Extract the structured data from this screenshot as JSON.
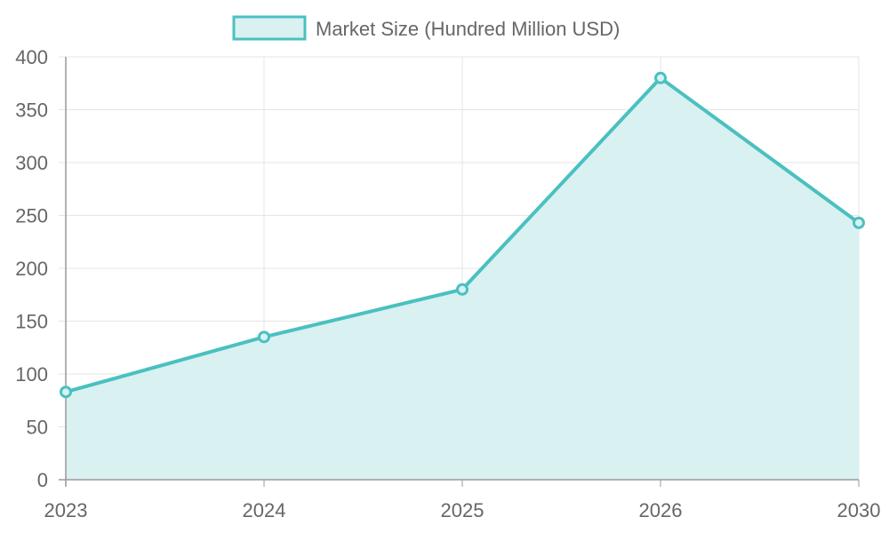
{
  "chart_data": {
    "type": "area",
    "categories": [
      "2023",
      "2024",
      "2025",
      "2026",
      "2030"
    ],
    "series": [
      {
        "name": "Market Size (Hundred Million USD)",
        "values": [
          83,
          135,
          180,
          380,
          243
        ]
      }
    ],
    "ylim": [
      0,
      400
    ],
    "y_ticks": [
      0,
      50,
      100,
      150,
      200,
      250,
      300,
      350,
      400
    ],
    "grid": true,
    "legend_position": "top",
    "colors": {
      "line": "#4bc0c0",
      "fill": "#d9f1f1",
      "grid": "#e5e5e5",
      "axis": "#999999",
      "text": "#666666"
    }
  }
}
